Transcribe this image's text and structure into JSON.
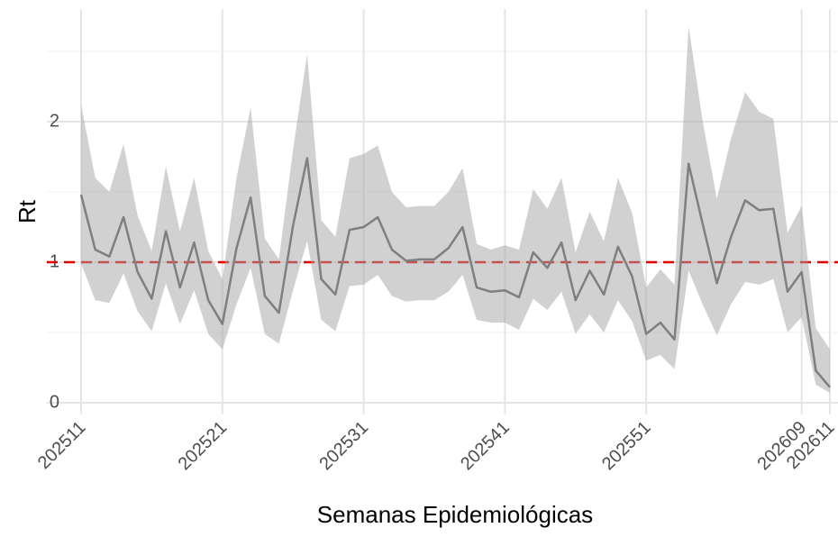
{
  "chart_data": {
    "type": "line",
    "x_label": "Semanas Epidemiológicas",
    "y_label": "Rt",
    "categories": [
      "202511",
      null,
      null,
      null,
      null,
      null,
      null,
      null,
      null,
      null,
      "202521",
      null,
      null,
      null,
      null,
      null,
      null,
      null,
      null,
      null,
      "202531",
      null,
      null,
      null,
      null,
      null,
      null,
      null,
      null,
      null,
      "202541",
      null,
      null,
      null,
      null,
      null,
      null,
      null,
      null,
      null,
      "202551",
      null,
      null,
      null,
      null,
      null,
      null,
      null,
      null,
      null,
      null,
      "202609",
      null,
      "202611"
    ],
    "values": [
      1.48,
      1.09,
      1.04,
      1.32,
      0.93,
      0.74,
      1.22,
      0.82,
      1.14,
      0.73,
      0.56,
      1.1,
      1.46,
      0.76,
      0.64,
      1.26,
      1.74,
      0.88,
      0.77,
      1.23,
      1.25,
      1.32,
      1.09,
      1.01,
      1.02,
      1.02,
      1.1,
      1.25,
      0.82,
      0.79,
      0.8,
      0.75,
      1.07,
      0.96,
      1.14,
      0.73,
      0.94,
      0.77,
      1.11,
      0.9,
      0.49,
      0.57,
      0.45,
      1.7,
      1.27,
      0.85,
      1.18,
      1.44,
      1.37,
      1.38,
      0.79,
      0.93,
      0.23,
      0.11
    ],
    "upper": [
      2.12,
      1.6,
      1.5,
      1.84,
      1.33,
      1.08,
      1.68,
      1.22,
      1.6,
      1.08,
      0.88,
      1.6,
      2.1,
      1.17,
      1.02,
      1.8,
      2.48,
      1.3,
      1.18,
      1.74,
      1.77,
      1.83,
      1.5,
      1.39,
      1.4,
      1.4,
      1.5,
      1.67,
      1.13,
      1.09,
      1.12,
      1.09,
      1.52,
      1.38,
      1.6,
      1.07,
      1.36,
      1.15,
      1.6,
      1.35,
      0.82,
      0.95,
      0.84,
      2.68,
      2.0,
      1.45,
      1.88,
      2.21,
      2.07,
      2.02,
      1.21,
      1.4,
      0.53,
      0.38
    ],
    "lower": [
      0.99,
      0.73,
      0.71,
      0.92,
      0.65,
      0.51,
      0.85,
      0.56,
      0.8,
      0.49,
      0.38,
      0.7,
      0.96,
      0.49,
      0.42,
      0.8,
      1.15,
      0.59,
      0.51,
      0.83,
      0.84,
      0.91,
      0.76,
      0.72,
      0.73,
      0.73,
      0.79,
      0.91,
      0.59,
      0.57,
      0.57,
      0.52,
      0.74,
      0.66,
      0.79,
      0.49,
      0.63,
      0.5,
      0.73,
      0.58,
      0.3,
      0.34,
      0.24,
      0.94,
      0.7,
      0.48,
      0.7,
      0.86,
      0.84,
      0.88,
      0.5,
      0.61,
      0.13,
      0.07
    ],
    "color": "#7f7f7f",
    "band_color": "#a3a3a3",
    "reference_line": 1,
    "reference_color": "#e00000",
    "ylim": [
      -0.08,
      2.8
    ],
    "yticks": [
      0,
      1,
      2
    ],
    "minor_yticks": [
      0.5,
      1.5,
      2.5
    ],
    "grid": true
  }
}
